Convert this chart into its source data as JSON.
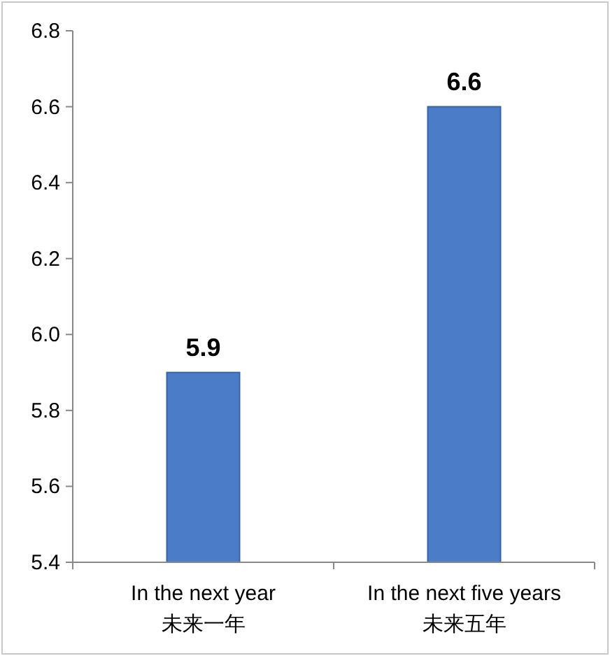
{
  "chart_data": {
    "type": "bar",
    "categories": [
      "In the next year\n未来一年",
      "In the next five years\n未来五年"
    ],
    "values": [
      5.9,
      6.6
    ],
    "color": "#4a7cc8",
    "ylim": [
      5.4,
      6.8
    ],
    "yticks": [
      5.4,
      5.6,
      5.8,
      {
        "value": 6,
        "label": "6.0"
      },
      6.2,
      6.4,
      6.6,
      6.8
    ],
    "data_labels": true,
    "grid": false
  }
}
